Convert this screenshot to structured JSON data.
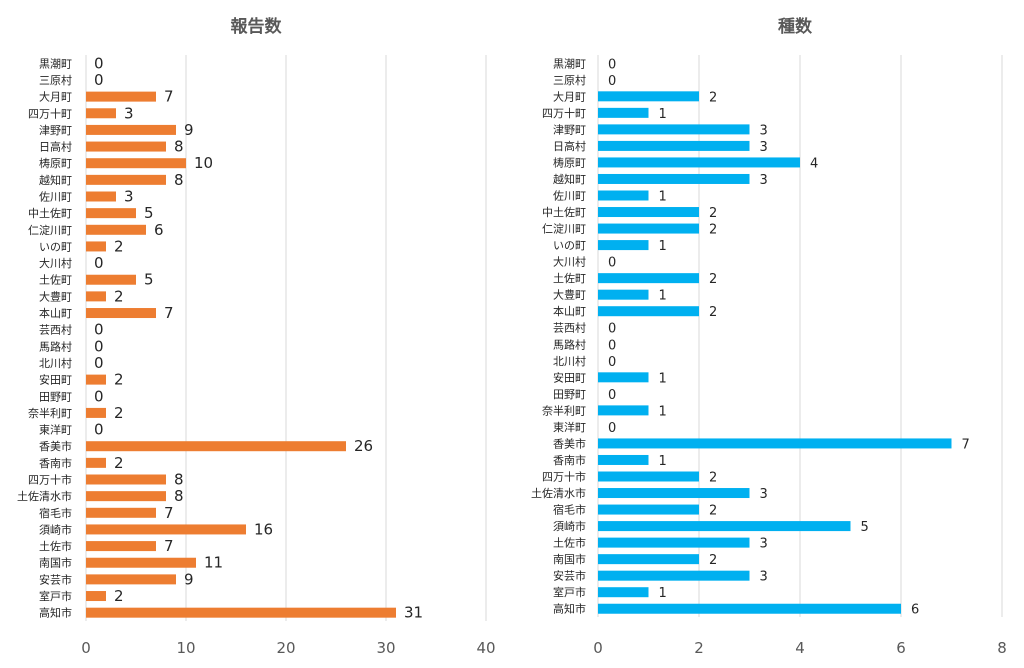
{
  "chart_data": [
    {
      "type": "bar",
      "orientation": "horizontal",
      "title": "報告数",
      "categories": [
        "黒潮町",
        "三原村",
        "大月町",
        "四万十町",
        "津野町",
        "日高村",
        "梼原町",
        "越知町",
        "佐川町",
        "中土佐町",
        "仁淀川町",
        "いの町",
        "大川村",
        "土佐町",
        "大豊町",
        "本山町",
        "芸西村",
        "馬路村",
        "北川村",
        "安田町",
        "田野町",
        "奈半利町",
        "東洋町",
        "香美市",
        "香南市",
        "四万十市",
        "土佐清水市",
        "宿毛市",
        "須崎市",
        "土佐市",
        "南国市",
        "安芸市",
        "室戸市",
        "高知市"
      ],
      "values": [
        0,
        0,
        7,
        3,
        9,
        8,
        10,
        8,
        3,
        5,
        6,
        2,
        0,
        5,
        2,
        7,
        0,
        0,
        0,
        2,
        0,
        2,
        0,
        26,
        2,
        8,
        8,
        7,
        16,
        7,
        11,
        9,
        2,
        31
      ],
      "xlim": [
        0,
        40
      ],
      "ticks": [
        "0",
        "10",
        "20",
        "30",
        "40"
      ],
      "tick_values": [
        0,
        10,
        20,
        30,
        40
      ],
      "grid": true,
      "color": "#ed7d31"
    },
    {
      "type": "bar",
      "orientation": "horizontal",
      "title": "種数",
      "categories": [
        "黒潮町",
        "三原村",
        "大月町",
        "四万十町",
        "津野町",
        "日高村",
        "梼原町",
        "越知町",
        "佐川町",
        "中土佐町",
        "仁淀川町",
        "いの町",
        "大川村",
        "土佐町",
        "大豊町",
        "本山町",
        "芸西村",
        "馬路村",
        "北川村",
        "安田町",
        "田野町",
        "奈半利町",
        "東洋町",
        "香美市",
        "香南市",
        "四万十市",
        "土佐清水市",
        "宿毛市",
        "須崎市",
        "土佐市",
        "南国市",
        "安芸市",
        "室戸市",
        "高知市"
      ],
      "values": [
        0,
        0,
        2,
        1,
        3,
        3,
        4,
        3,
        1,
        2,
        2,
        1,
        0,
        2,
        1,
        2,
        0,
        0,
        0,
        1,
        0,
        1,
        0,
        7,
        1,
        2,
        3,
        2,
        5,
        3,
        2,
        3,
        1,
        6
      ],
      "xlim": [
        0,
        8
      ],
      "ticks": [
        "0",
        "2",
        "4",
        "6",
        "8"
      ],
      "tick_values": [
        0,
        2,
        4,
        6,
        8
      ],
      "grid": true,
      "color": "#00b0f0"
    }
  ]
}
